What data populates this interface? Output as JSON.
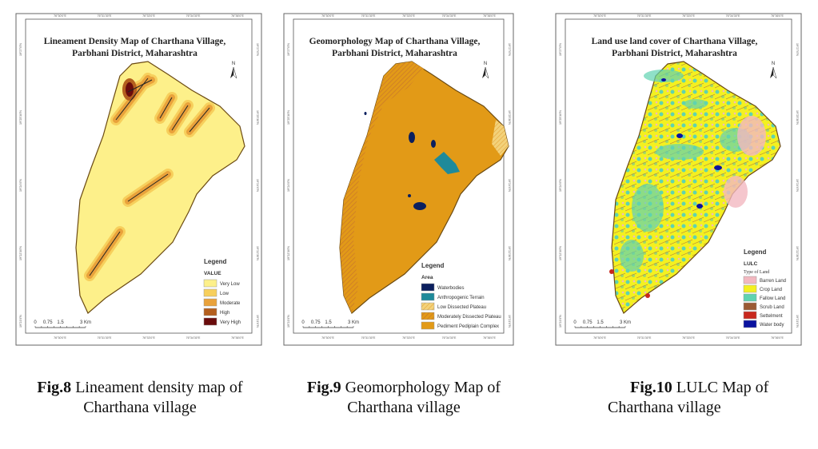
{
  "figures": [
    {
      "title_line1": "Lineament Density Map of Charthana Village,",
      "title_line2": "Parbhani District, Maharashtra",
      "legend_title": "Legend",
      "legend_subtitle": "VALUE",
      "legend": [
        {
          "label": "Very Low",
          "color": "#fdf08a"
        },
        {
          "label": "Low",
          "color": "#f7cf5c"
        },
        {
          "label": "Moderate",
          "color": "#e9a23b"
        },
        {
          "label": "High",
          "color": "#b45f1e"
        },
        {
          "label": "Very High",
          "color": "#6a0c0c"
        }
      ],
      "caption_num": "Fig.8",
      "caption_text": " Lineament density map of",
      "caption_line2": "Charthana village"
    },
    {
      "title_line1": "Geomorphology Map of Charthana Village,",
      "title_line2": "Parbhani District, Maharashtra",
      "legend_title": "Legend",
      "legend_subtitle": "Area",
      "legend": [
        {
          "label": "Waterbodies",
          "color": "#0b1f5e"
        },
        {
          "label": "Anthropogenic Terrain",
          "color": "#1f8a9a"
        },
        {
          "label": "Low Dissected Plateau",
          "color": "#f3d27a"
        },
        {
          "label": "Moderately Dissected Plateau",
          "color": "#dc8f3a"
        },
        {
          "label": "Pediment Pediplain Complex",
          "color": "#e29a17"
        }
      ],
      "caption_num": "Fig.9",
      "caption_text": " Geomorphology Map of",
      "caption_line2": "Charthana village"
    },
    {
      "title_line1": "Land use land cover of Charthana Village,",
      "title_line2": "Parbhani District, Maharashtra",
      "legend_title": "Legend",
      "legend_subtitle": "LULC",
      "legend_type": "Type of Land",
      "legend": [
        {
          "label": "Barren Land",
          "color": "#f2b8c0"
        },
        {
          "label": "Crop Land",
          "color": "#f4f020"
        },
        {
          "label": "Fallow Land",
          "color": "#5fd3b0"
        },
        {
          "label": "Scrub Land",
          "color": "#9a5a34"
        },
        {
          "label": "Settelment",
          "color": "#c8281e"
        },
        {
          "label": "Water body",
          "color": "#0a12a0"
        }
      ],
      "caption_num": "Fig.10",
      "caption_text": " LULC Map of",
      "caption_line2": "Charthana village"
    }
  ],
  "north_label": "N",
  "scale_labels": [
    "0",
    "0.75",
    "1.5",
    "3 Km"
  ],
  "longitude_labels": [
    "76°30'0\"E",
    "76°31'30\"E",
    "76°33'0\"E",
    "76°34'30\"E",
    "76°36'0\"E"
  ],
  "latitude_labels": [
    "19°27'0\"N",
    "19°25'30\"N",
    "19°24'0\"N",
    "19°22'30\"N",
    "19°21'0\"N"
  ]
}
